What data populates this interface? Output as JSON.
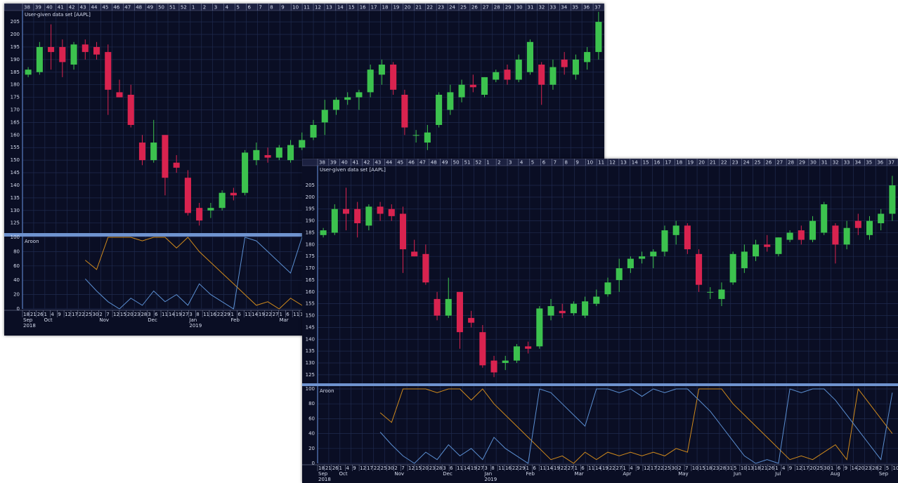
{
  "chart_data": [
    {
      "type": "candlestick",
      "title": "User-given data set [AAPL]",
      "week_labels": [
        "38",
        "39",
        "40",
        "41",
        "42",
        "43",
        "44",
        "45",
        "46",
        "47",
        "48",
        "49",
        "50",
        "51",
        "52",
        "1",
        "2",
        "3",
        "4",
        "5",
        "6",
        "7",
        "8",
        "9",
        "10",
        "11",
        "12",
        "13",
        "14",
        "15",
        "16",
        "17",
        "18",
        "19",
        "20",
        "21",
        "22",
        "23",
        "24",
        "25",
        "26",
        "27",
        "28",
        "29",
        "30",
        "31",
        "32",
        "33",
        "34",
        "35",
        "36",
        "37"
      ],
      "day_labels": [
        "18",
        "21",
        "26",
        "1",
        "4",
        "9",
        "12",
        "17",
        "22",
        "25",
        "30",
        "2",
        "7",
        "12",
        "15",
        "20",
        "23",
        "28",
        "3",
        "6",
        "11",
        "14",
        "19",
        "27",
        "3",
        "8",
        "11",
        "16",
        "22",
        "29",
        "1",
        "6",
        "11",
        "14",
        "19",
        "22",
        "27",
        "1",
        "6",
        "11",
        "14"
      ],
      "months": [
        "Sep",
        "Oct",
        "Nov",
        "Dec",
        "Jan",
        "Feb",
        "Mar"
      ],
      "years": [
        "2018",
        "2019"
      ],
      "ylim": [
        121,
        209.5
      ],
      "yticks": [
        125,
        130,
        135,
        140,
        145,
        150,
        155,
        160,
        165,
        170,
        175,
        180,
        185,
        190,
        195,
        200,
        205
      ],
      "grid": true,
      "up_color": "#3cc24e",
      "down_color": "#d9234f",
      "open": [
        184,
        185,
        195,
        195,
        188,
        196,
        195,
        193,
        177,
        176,
        157,
        150,
        160,
        149,
        143,
        131,
        130,
        131,
        137,
        137,
        150,
        152,
        151,
        150,
        155,
        159,
        165,
        170,
        174,
        175,
        177,
        184,
        188,
        176,
        160,
        157,
        164,
        170,
        175,
        180,
        176,
        182,
        186,
        182,
        185,
        188,
        180,
        190,
        184,
        189,
        193
      ],
      "high": [
        187,
        197,
        204,
        198,
        197,
        198,
        197,
        196,
        182,
        180,
        160,
        166,
        160,
        152,
        146,
        133,
        133,
        138,
        139,
        154,
        157,
        155,
        156,
        158,
        161,
        166,
        174,
        175,
        177,
        178,
        188,
        190,
        189,
        178,
        162,
        164,
        177,
        180,
        182,
        184,
        183,
        186,
        188,
        192,
        198,
        189,
        190,
        193,
        192,
        195,
        209
      ],
      "low": [
        183,
        184,
        186,
        183,
        186,
        190,
        190,
        168,
        175,
        163,
        148,
        149,
        136,
        145,
        128,
        124,
        127,
        130,
        134,
        136,
        148,
        149,
        150,
        149,
        154,
        158,
        160,
        168,
        172,
        170,
        175,
        180,
        176,
        160,
        157,
        154,
        163,
        168,
        173,
        177,
        175,
        181,
        180,
        181,
        184,
        172,
        178,
        184,
        182,
        186,
        190
      ],
      "close": [
        186,
        195,
        193,
        189,
        196,
        193,
        192,
        178,
        175,
        164,
        150,
        157,
        143,
        147,
        129,
        126,
        131,
        137,
        136,
        153,
        154,
        151,
        155,
        156,
        158,
        164,
        170,
        174,
        175,
        177,
        186,
        188,
        178,
        163,
        160,
        161,
        176,
        177,
        180,
        179,
        183,
        185,
        182,
        190,
        197,
        180,
        187,
        187,
        190,
        193,
        205
      ],
      "indicator": {
        "title": "Aroon",
        "ylim": [
          0,
          100
        ],
        "yticks": [
          0,
          20,
          40,
          60,
          80,
          100
        ],
        "series": [
          {
            "color": "#d08a1c",
            "values": [
              null,
              null,
              null,
              null,
              null,
              68,
              55,
              100,
              100,
              100,
              95,
              100,
              100,
              85,
              100,
              80,
              65,
              50,
              35,
              20,
              5,
              10,
              0,
              15,
              5,
              15,
              10,
              15,
              10,
              15,
              10,
              20,
              15,
              100,
              100,
              100,
              80,
              65,
              50,
              35,
              20,
              5,
              10,
              5,
              15,
              25,
              5,
              100,
              80,
              60,
              40
            ]
          },
          {
            "color": "#5b8fd2",
            "values": [
              null,
              null,
              null,
              null,
              null,
              42,
              25,
              10,
              0,
              15,
              5,
              25,
              10,
              20,
              5,
              35,
              20,
              10,
              0,
              100,
              95,
              80,
              65,
              50,
              100,
              100,
              95,
              100,
              90,
              100,
              95,
              100,
              100,
              85,
              70,
              50,
              30,
              10,
              0,
              5,
              0,
              100,
              95,
              100,
              100,
              85,
              65,
              45,
              25,
              5,
              95
            ]
          }
        ]
      }
    },
    {
      "type": "candlestick",
      "title": "User-given data set [AAPL]",
      "week_labels": [
        "38",
        "39",
        "40",
        "41",
        "42",
        "43",
        "44",
        "45",
        "46",
        "47",
        "48",
        "49",
        "50",
        "51",
        "52",
        "1",
        "2",
        "3",
        "4",
        "5",
        "6",
        "7",
        "8",
        "9",
        "10",
        "11",
        "12",
        "13",
        "14",
        "15",
        "16",
        "17",
        "18",
        "19",
        "20",
        "21",
        "22",
        "23",
        "24",
        "25",
        "26",
        "27",
        "28",
        "29",
        "30",
        "31",
        "32",
        "33",
        "34",
        "35",
        "36",
        "37"
      ],
      "day_labels": [
        "18",
        "21",
        "26",
        "1",
        "4",
        "9",
        "12",
        "17",
        "22",
        "25",
        "30",
        "2",
        "7",
        "12",
        "15",
        "20",
        "23",
        "28",
        "3",
        "6",
        "11",
        "14",
        "19",
        "27",
        "3",
        "8",
        "11",
        "16",
        "22",
        "29",
        "1",
        "6",
        "11",
        "14",
        "19",
        "22",
        "27",
        "1",
        "6",
        "11",
        "14",
        "19",
        "22",
        "27",
        "1",
        "4",
        "9",
        "12",
        "17",
        "22",
        "25",
        "30",
        "2",
        "7",
        "10",
        "15",
        "18",
        "23",
        "28",
        "31",
        "5",
        "10",
        "13",
        "18",
        "21",
        "26",
        "1",
        "4",
        "9",
        "12",
        "17",
        "20",
        "25",
        "30",
        "1",
        "6",
        "9",
        "14",
        "20",
        "23",
        "28",
        "2",
        "5",
        "10"
      ],
      "months": [
        "Sep",
        "Oct",
        "Nov",
        "Dec",
        "Jan",
        "Feb",
        "Mar",
        "Apr",
        "May",
        "Jun",
        "Jul",
        "Aug",
        "Sep"
      ],
      "years": [
        "2018",
        "2019"
      ],
      "ylim": [
        121.4,
        213.3
      ],
      "yticks": [
        125,
        130,
        135,
        140,
        145,
        150,
        155,
        160,
        165,
        170,
        175,
        180,
        185,
        190,
        195,
        200,
        205
      ],
      "grid": true,
      "up_color": "#3cc24e",
      "down_color": "#d9234f",
      "open": [
        184,
        185,
        195,
        195,
        188,
        196,
        195,
        193,
        177,
        176,
        157,
        150,
        160,
        149,
        143,
        131,
        130,
        131,
        137,
        137,
        150,
        152,
        151,
        150,
        155,
        159,
        165,
        170,
        174,
        175,
        177,
        184,
        188,
        176,
        160,
        157,
        164,
        170,
        175,
        180,
        176,
        182,
        186,
        182,
        185,
        188,
        180,
        190,
        184,
        189,
        193
      ],
      "high": [
        187,
        197,
        204,
        198,
        197,
        198,
        197,
        196,
        182,
        180,
        160,
        166,
        160,
        152,
        146,
        133,
        133,
        138,
        139,
        154,
        157,
        155,
        156,
        158,
        161,
        166,
        174,
        175,
        177,
        178,
        188,
        190,
        189,
        178,
        162,
        164,
        177,
        180,
        182,
        184,
        183,
        186,
        188,
        192,
        198,
        189,
        190,
        193,
        192,
        195,
        209
      ],
      "low": [
        183,
        184,
        186,
        183,
        186,
        190,
        190,
        168,
        175,
        163,
        148,
        149,
        136,
        145,
        128,
        124,
        127,
        130,
        134,
        136,
        148,
        149,
        150,
        149,
        154,
        158,
        160,
        168,
        172,
        170,
        175,
        180,
        176,
        160,
        157,
        154,
        163,
        168,
        173,
        177,
        175,
        181,
        180,
        181,
        184,
        172,
        178,
        184,
        182,
        186,
        190
      ],
      "close": [
        186,
        195,
        193,
        189,
        196,
        193,
        192,
        178,
        175,
        164,
        150,
        157,
        143,
        147,
        129,
        126,
        131,
        137,
        136,
        153,
        154,
        151,
        155,
        156,
        158,
        164,
        170,
        174,
        175,
        177,
        186,
        188,
        178,
        163,
        160,
        161,
        176,
        177,
        180,
        179,
        183,
        185,
        182,
        190,
        197,
        180,
        187,
        187,
        190,
        193,
        205
      ],
      "indicator": {
        "title": "Aroon",
        "ylim": [
          0,
          100
        ],
        "yticks": [
          0,
          20,
          40,
          60,
          80,
          100
        ],
        "series": [
          {
            "color": "#d08a1c",
            "values": [
              null,
              null,
              null,
              null,
              null,
              68,
              55,
              100,
              100,
              100,
              95,
              100,
              100,
              85,
              100,
              80,
              65,
              50,
              35,
              20,
              5,
              10,
              0,
              15,
              5,
              15,
              10,
              15,
              10,
              15,
              10,
              20,
              15,
              100,
              100,
              100,
              80,
              65,
              50,
              35,
              20,
              5,
              10,
              5,
              15,
              25,
              5,
              100,
              80,
              60,
              40
            ]
          },
          {
            "color": "#5b8fd2",
            "values": [
              null,
              null,
              null,
              null,
              null,
              42,
              25,
              10,
              0,
              15,
              5,
              25,
              10,
              20,
              5,
              35,
              20,
              10,
              0,
              100,
              95,
              80,
              65,
              50,
              100,
              100,
              95,
              100,
              90,
              100,
              95,
              100,
              100,
              85,
              70,
              50,
              30,
              10,
              0,
              5,
              0,
              100,
              95,
              100,
              100,
              85,
              65,
              45,
              25,
              5,
              95
            ]
          }
        ]
      }
    }
  ]
}
